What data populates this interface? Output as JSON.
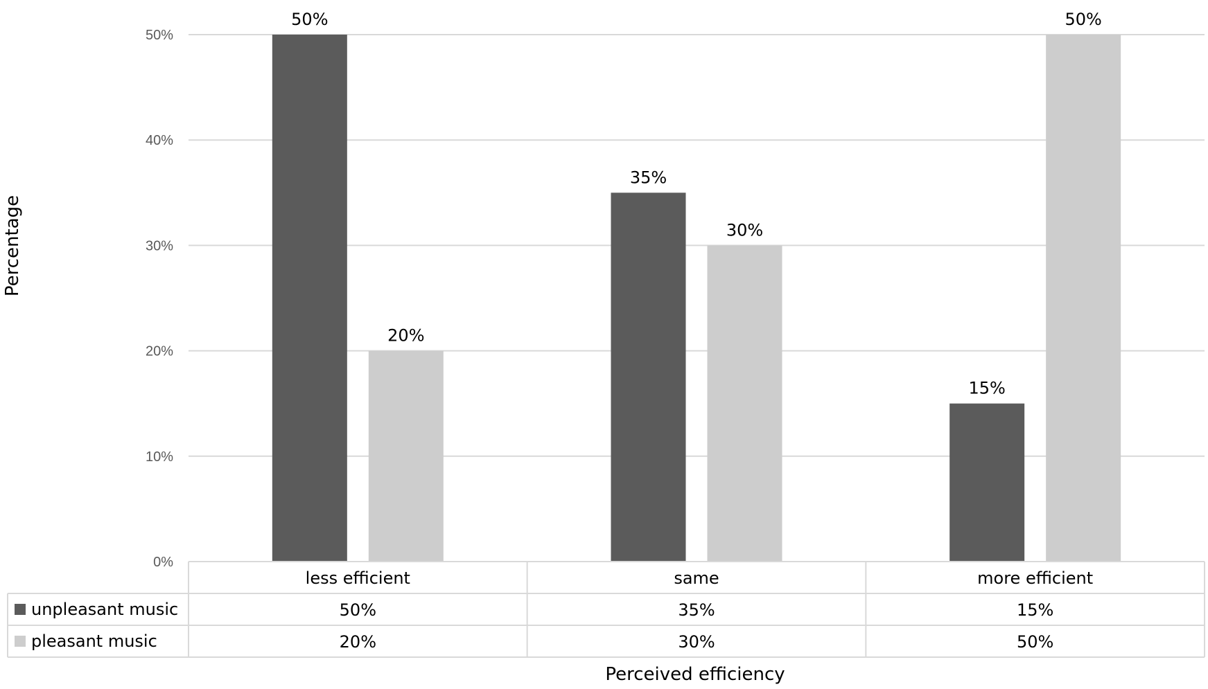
{
  "chart_data": {
    "type": "bar",
    "categories": [
      "less efficient",
      "same",
      "more efficient"
    ],
    "series": [
      {
        "name": "unpleasant music",
        "values": [
          50,
          35,
          15
        ],
        "color": "#5b5b5b"
      },
      {
        "name": "pleasant music",
        "values": [
          20,
          30,
          50
        ],
        "color": "#cdcdcd"
      }
    ],
    "value_labels": [
      [
        "50%",
        "35%",
        "15%"
      ],
      [
        "20%",
        "30%",
        "50%"
      ]
    ],
    "title": "",
    "xlabel": "Perceived efficiency",
    "ylabel": "Percentage",
    "ylim": [
      0,
      50
    ],
    "yticks": [
      0,
      10,
      20,
      30,
      40,
      50
    ],
    "ytick_labels": [
      "0%",
      "10%",
      "20%",
      "30%",
      "40%",
      "50%"
    ],
    "grid": true,
    "legend": "data-table",
    "gridline_color": "#d9d9d9"
  }
}
